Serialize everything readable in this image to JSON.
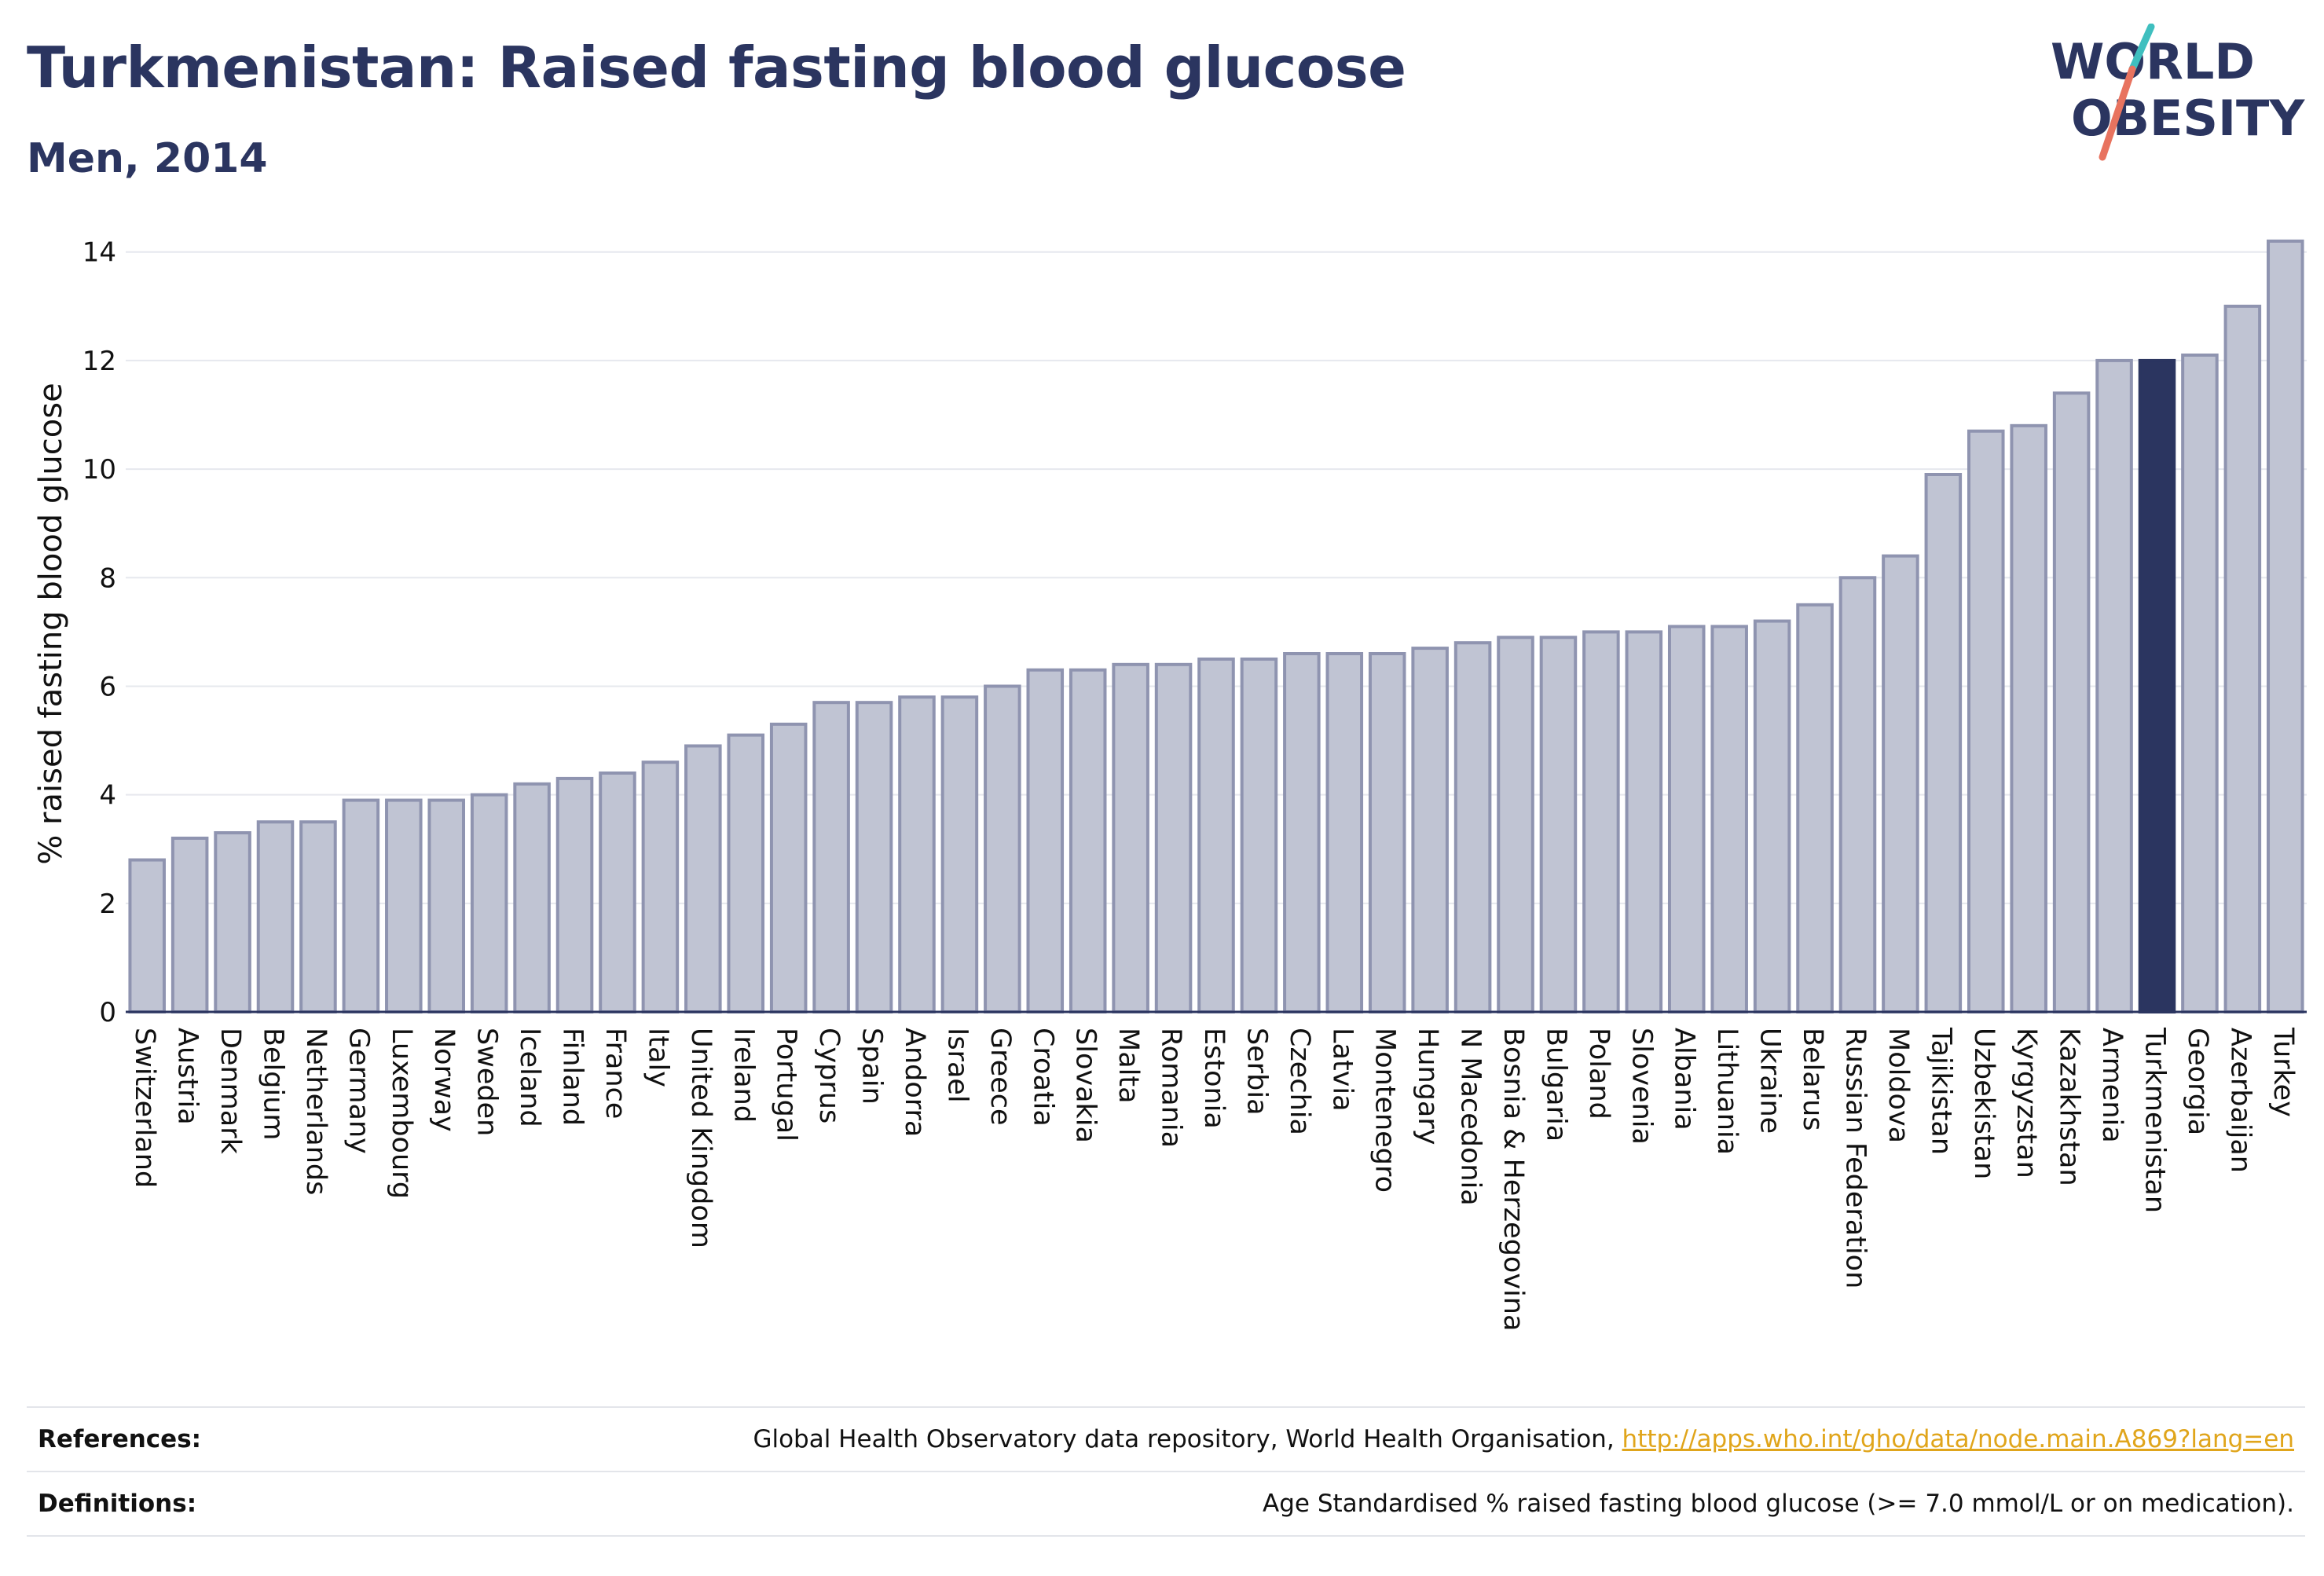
{
  "header": {
    "title": "Turkmenistan: Raised fasting blood glucose",
    "subtitle": "Men, 2014"
  },
  "logo": {
    "line1": "WORLD",
    "line2": "OBESITY",
    "colors": {
      "text": "#2b3560",
      "accent_teal": "#3fbfbf",
      "accent_coral": "#e8735f"
    }
  },
  "chart_data": {
    "type": "bar",
    "ylabel": "% raised fasting blood glucose",
    "ylim": [
      0,
      14.3
    ],
    "yticks": [
      0,
      2,
      4,
      6,
      8,
      10,
      12,
      14
    ],
    "grid": true,
    "highlight": "Turkmenistan",
    "colors": {
      "bar": "#c0c4d3",
      "bar_border": "#8f94b0",
      "highlight": "#2b3560",
      "axis": "#2b3560",
      "grid": "#e6e8ee"
    },
    "categories": [
      "Switzerland",
      "Austria",
      "Denmark",
      "Belgium",
      "Netherlands",
      "Germany",
      "Luxembourg",
      "Norway",
      "Sweden",
      "Iceland",
      "Finland",
      "France",
      "Italy",
      "United Kingdom",
      "Ireland",
      "Portugal",
      "Cyprus",
      "Spain",
      "Andorra",
      "Israel",
      "Greece",
      "Croatia",
      "Slovakia",
      "Malta",
      "Romania",
      "Estonia",
      "Serbia",
      "Czechia",
      "Latvia",
      "Montenegro",
      "Hungary",
      "N Macedonia",
      "Bosnia & Herzegovina",
      "Bulgaria",
      "Poland",
      "Slovenia",
      "Albania",
      "Lithuania",
      "Ukraine",
      "Belarus",
      "Russian Federation",
      "Moldova",
      "Tajikistan",
      "Uzbekistan",
      "Kyrgyzstan",
      "Kazakhstan",
      "Armenia",
      "Turkmenistan",
      "Georgia",
      "Azerbaijan",
      "Turkey"
    ],
    "values": [
      2.8,
      3.2,
      3.3,
      3.5,
      3.5,
      3.9,
      3.9,
      3.9,
      4.0,
      4.2,
      4.3,
      4.4,
      4.6,
      4.9,
      5.1,
      5.3,
      5.7,
      5.7,
      5.8,
      5.8,
      6.0,
      6.3,
      6.3,
      6.4,
      6.4,
      6.5,
      6.5,
      6.6,
      6.6,
      6.6,
      6.7,
      6.8,
      6.9,
      6.9,
      7.0,
      7.0,
      7.1,
      7.1,
      7.2,
      7.5,
      8.0,
      8.4,
      9.9,
      10.7,
      10.8,
      11.4,
      12.0,
      12.0,
      12.1,
      13.0,
      14.2
    ]
  },
  "info": {
    "references_label": "References:",
    "references_text": "Global Health Observatory data repository, World Health Organisation, ",
    "references_link": "http://apps.who.int/gho/data/node.main.A869?lang=en",
    "definitions_label": "Definitions:",
    "definitions_text": "Age Standardised % raised fasting blood glucose (>= 7.0 mmol/L or on medication)."
  }
}
